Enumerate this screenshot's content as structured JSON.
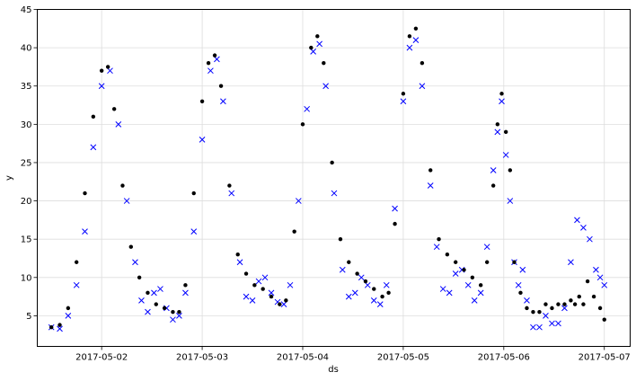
{
  "chart_data": {
    "type": "scatter",
    "title": "",
    "xlabel": "ds",
    "ylabel": "y",
    "x_tick_labels": [
      "2017-05-02",
      "2017-05-03",
      "2017-05-04",
      "2017-05-05",
      "2017-05-06",
      "2017-05-07"
    ],
    "y_tick_labels": [
      "5",
      "10",
      "15",
      "20",
      "25",
      "30",
      "35",
      "40",
      "45"
    ],
    "xlim": [
      "2017-05-01T08:38",
      "2017-05-07T06:10"
    ],
    "ylim": [
      1,
      45
    ],
    "grid": true,
    "colors": {
      "forecast": "#0000ff",
      "actual": "#000000",
      "grid": "#dddddd"
    },
    "series": [
      {
        "marker": "x",
        "color": "#0000ff",
        "points": [
          [
            "2017-05-01T12:00",
            3.5
          ],
          [
            "2017-05-01T14:00",
            3.3
          ],
          [
            "2017-05-01T16:00",
            5.0
          ],
          [
            "2017-05-01T18:00",
            9.0
          ],
          [
            "2017-05-01T20:00",
            16.0
          ],
          [
            "2017-05-01T22:00",
            27.0
          ],
          [
            "2017-05-02T00:00",
            35.0
          ],
          [
            "2017-05-02T02:00",
            37.0
          ],
          [
            "2017-05-02T04:00",
            30.0
          ],
          [
            "2017-05-02T06:00",
            20.0
          ],
          [
            "2017-05-02T08:00",
            12.0
          ],
          [
            "2017-05-02T09:30",
            7.0
          ],
          [
            "2017-05-02T11:00",
            5.5
          ],
          [
            "2017-05-02T12:30",
            8.0
          ],
          [
            "2017-05-02T14:00",
            8.5
          ],
          [
            "2017-05-02T15:30",
            6.0
          ],
          [
            "2017-05-02T17:00",
            4.5
          ],
          [
            "2017-05-02T18:30",
            5.0
          ],
          [
            "2017-05-02T20:00",
            8.0
          ],
          [
            "2017-05-02T22:00",
            16.0
          ],
          [
            "2017-05-03T00:00",
            28.0
          ],
          [
            "2017-05-03T02:00",
            37.0
          ],
          [
            "2017-05-03T03:30",
            38.5
          ],
          [
            "2017-05-03T05:00",
            33.0
          ],
          [
            "2017-05-03T07:00",
            21.0
          ],
          [
            "2017-05-03T09:00",
            12.0
          ],
          [
            "2017-05-03T10:30",
            7.5
          ],
          [
            "2017-05-03T12:00",
            7.0
          ],
          [
            "2017-05-03T13:30",
            9.5
          ],
          [
            "2017-05-03T15:00",
            10.0
          ],
          [
            "2017-05-03T16:30",
            8.0
          ],
          [
            "2017-05-03T18:00",
            6.8
          ],
          [
            "2017-05-03T19:30",
            6.5
          ],
          [
            "2017-05-03T21:00",
            9.0
          ],
          [
            "2017-05-03T23:00",
            20.0
          ],
          [
            "2017-05-04T01:00",
            32.0
          ],
          [
            "2017-05-04T02:30",
            39.5
          ],
          [
            "2017-05-04T04:00",
            40.5
          ],
          [
            "2017-05-04T05:30",
            35.0
          ],
          [
            "2017-05-04T07:30",
            21.0
          ],
          [
            "2017-05-04T09:30",
            11.0
          ],
          [
            "2017-05-04T11:00",
            7.5
          ],
          [
            "2017-05-04T12:30",
            8.0
          ],
          [
            "2017-05-04T14:00",
            10.0
          ],
          [
            "2017-05-04T15:30",
            9.0
          ],
          [
            "2017-05-04T17:00",
            7.0
          ],
          [
            "2017-05-04T18:30",
            6.5
          ],
          [
            "2017-05-04T20:00",
            9.0
          ],
          [
            "2017-05-04T22:00",
            19.0
          ],
          [
            "2017-05-05T00:00",
            33.0
          ],
          [
            "2017-05-05T01:30",
            40.0
          ],
          [
            "2017-05-05T03:00",
            41.0
          ],
          [
            "2017-05-05T04:30",
            35.0
          ],
          [
            "2017-05-05T06:30",
            22.0
          ],
          [
            "2017-05-05T08:00",
            14.0
          ],
          [
            "2017-05-05T09:30",
            8.5
          ],
          [
            "2017-05-05T11:00",
            8.0
          ],
          [
            "2017-05-05T12:30",
            10.5
          ],
          [
            "2017-05-05T14:00",
            11.0
          ],
          [
            "2017-05-05T15:30",
            9.0
          ],
          [
            "2017-05-05T17:00",
            7.0
          ],
          [
            "2017-05-05T18:30",
            8.0
          ],
          [
            "2017-05-05T20:00",
            14.0
          ],
          [
            "2017-05-05T21:30",
            24.0
          ],
          [
            "2017-05-05T22:30",
            29.0
          ],
          [
            "2017-05-05T23:30",
            33.0
          ],
          [
            "2017-05-06T00:30",
            26.0
          ],
          [
            "2017-05-06T01:30",
            20.0
          ],
          [
            "2017-05-06T02:30",
            12.0
          ],
          [
            "2017-05-06T03:30",
            9.0
          ],
          [
            "2017-05-06T04:30",
            11.0
          ],
          [
            "2017-05-06T05:30",
            7.0
          ],
          [
            "2017-05-06T07:00",
            3.5
          ],
          [
            "2017-05-06T08:30",
            3.5
          ],
          [
            "2017-05-06T10:00",
            5.0
          ],
          [
            "2017-05-06T11:30",
            4.0
          ],
          [
            "2017-05-06T13:00",
            4.0
          ],
          [
            "2017-05-06T14:30",
            6.0
          ],
          [
            "2017-05-06T16:00",
            12.0
          ],
          [
            "2017-05-06T17:30",
            17.5
          ],
          [
            "2017-05-06T19:00",
            16.5
          ],
          [
            "2017-05-06T20:30",
            15.0
          ],
          [
            "2017-05-06T22:00",
            11.0
          ],
          [
            "2017-05-06T23:00",
            10.0
          ],
          [
            "2017-05-07T00:00",
            9.0
          ]
        ]
      },
      {
        "marker": "o",
        "color": "#000000",
        "points": [
          [
            "2017-05-01T12:00",
            3.5
          ],
          [
            "2017-05-01T14:00",
            3.8
          ],
          [
            "2017-05-01T16:00",
            6.0
          ],
          [
            "2017-05-01T18:00",
            12.0
          ],
          [
            "2017-05-01T20:00",
            21.0
          ],
          [
            "2017-05-01T22:00",
            31.0
          ],
          [
            "2017-05-02T00:00",
            37.0
          ],
          [
            "2017-05-02T01:30",
            37.5
          ],
          [
            "2017-05-02T03:00",
            32.0
          ],
          [
            "2017-05-02T05:00",
            22.0
          ],
          [
            "2017-05-02T07:00",
            14.0
          ],
          [
            "2017-05-02T09:00",
            10.0
          ],
          [
            "2017-05-02T11:00",
            8.0
          ],
          [
            "2017-05-02T13:00",
            6.5
          ],
          [
            "2017-05-02T15:00",
            6.0
          ],
          [
            "2017-05-02T17:00",
            5.5
          ],
          [
            "2017-05-02T18:30",
            5.5
          ],
          [
            "2017-05-02T20:00",
            9.0
          ],
          [
            "2017-05-02T22:00",
            21.0
          ],
          [
            "2017-05-03T00:00",
            33.0
          ],
          [
            "2017-05-03T01:30",
            38.0
          ],
          [
            "2017-05-03T03:00",
            39.0
          ],
          [
            "2017-05-03T04:30",
            35.0
          ],
          [
            "2017-05-03T06:30",
            22.0
          ],
          [
            "2017-05-03T08:30",
            13.0
          ],
          [
            "2017-05-03T10:30",
            10.5
          ],
          [
            "2017-05-03T12:30",
            9.0
          ],
          [
            "2017-05-03T14:30",
            8.5
          ],
          [
            "2017-05-03T16:30",
            7.5
          ],
          [
            "2017-05-03T18:30",
            6.5
          ],
          [
            "2017-05-03T20:00",
            7.0
          ],
          [
            "2017-05-03T22:00",
            16.0
          ],
          [
            "2017-05-04T00:00",
            30.0
          ],
          [
            "2017-05-04T02:00",
            40.0
          ],
          [
            "2017-05-04T03:30",
            41.5
          ],
          [
            "2017-05-04T05:00",
            38.0
          ],
          [
            "2017-05-04T07:00",
            25.0
          ],
          [
            "2017-05-04T09:00",
            15.0
          ],
          [
            "2017-05-04T11:00",
            12.0
          ],
          [
            "2017-05-04T13:00",
            10.5
          ],
          [
            "2017-05-04T15:00",
            9.5
          ],
          [
            "2017-05-04T17:00",
            8.5
          ],
          [
            "2017-05-04T19:00",
            7.5
          ],
          [
            "2017-05-04T20:30",
            8.0
          ],
          [
            "2017-05-04T22:00",
            17.0
          ],
          [
            "2017-05-05T00:00",
            34.0
          ],
          [
            "2017-05-05T01:30",
            41.5
          ],
          [
            "2017-05-05T03:00",
            42.5
          ],
          [
            "2017-05-05T04:30",
            38.0
          ],
          [
            "2017-05-05T06:30",
            24.0
          ],
          [
            "2017-05-05T08:30",
            15.0
          ],
          [
            "2017-05-05T10:30",
            13.0
          ],
          [
            "2017-05-05T12:30",
            12.0
          ],
          [
            "2017-05-05T14:30",
            11.0
          ],
          [
            "2017-05-05T16:30",
            10.0
          ],
          [
            "2017-05-05T18:30",
            9.0
          ],
          [
            "2017-05-05T20:00",
            12.0
          ],
          [
            "2017-05-05T21:30",
            22.0
          ],
          [
            "2017-05-05T22:30",
            30.0
          ],
          [
            "2017-05-05T23:30",
            34.0
          ],
          [
            "2017-05-06T00:30",
            29.0
          ],
          [
            "2017-05-06T01:30",
            24.0
          ],
          [
            "2017-05-06T02:30",
            12.0
          ],
          [
            "2017-05-06T04:00",
            8.0
          ],
          [
            "2017-05-06T05:30",
            6.0
          ],
          [
            "2017-05-06T07:00",
            5.5
          ],
          [
            "2017-05-06T08:30",
            5.5
          ],
          [
            "2017-05-06T10:00",
            6.5
          ],
          [
            "2017-05-06T11:30",
            6.0
          ],
          [
            "2017-05-06T13:00",
            6.5
          ],
          [
            "2017-05-06T14:30",
            6.5
          ],
          [
            "2017-05-06T16:00",
            7.0
          ],
          [
            "2017-05-06T17:00",
            6.5
          ],
          [
            "2017-05-06T18:00",
            7.5
          ],
          [
            "2017-05-06T19:00",
            6.5
          ],
          [
            "2017-05-06T20:00",
            9.5
          ],
          [
            "2017-05-06T21:30",
            7.5
          ],
          [
            "2017-05-06T23:00",
            6.0
          ],
          [
            "2017-05-07T00:00",
            4.5
          ]
        ]
      }
    ]
  }
}
